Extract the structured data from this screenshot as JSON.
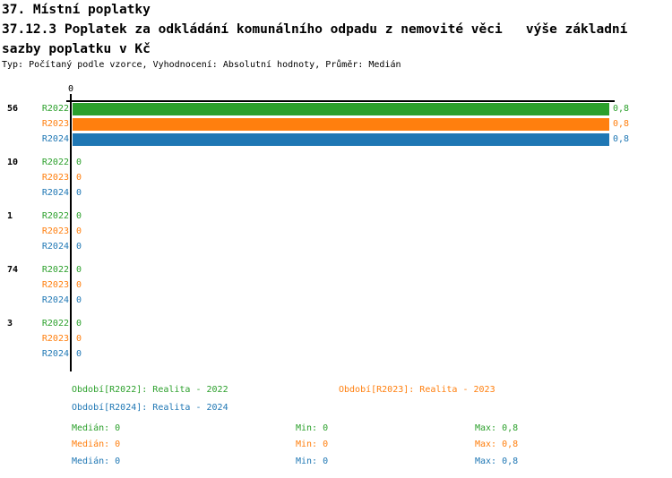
{
  "header": {
    "title": "37. Místní poplatky",
    "subtitle_lines": [
      "37.12.3 Poplatek za odkládání komunálního odpadu z nemovité věci   výše základní",
      "sazby poplatku v Kč"
    ],
    "meta": "Typ: Počítaný podle vzorce, Vyhodnocení: Absolutní hodnoty, Průměr: Medián"
  },
  "colors": {
    "R2022": "#2ca02c",
    "R2023": "#ff7f0e",
    "R2024": "#1f77b4",
    "axis": "#000000"
  },
  "chart_data": {
    "type": "bar",
    "orientation": "horizontal",
    "title": "37.12.3 Poplatek za odkládání komunálního odpadu z nemovité věci - výše základní sazby poplatku v Kč",
    "value_axis": {
      "tick_label": "0",
      "min": 0,
      "max": 0.8,
      "grid": false
    },
    "series_names": [
      "R2022",
      "R2023",
      "R2024"
    ],
    "groups": [
      {
        "label": "56",
        "values": [
          0.8,
          0.8,
          0.8
        ],
        "value_labels": [
          "0,8",
          "0,8",
          "0,8"
        ]
      },
      {
        "label": "10",
        "values": [
          0,
          0,
          0
        ],
        "value_labels": [
          "0",
          "0",
          "0"
        ]
      },
      {
        "label": "1",
        "values": [
          0,
          0,
          0
        ],
        "value_labels": [
          "0",
          "0",
          "0"
        ]
      },
      {
        "label": "74",
        "values": [
          0,
          0,
          0
        ],
        "value_labels": [
          "0",
          "0",
          "0"
        ]
      },
      {
        "label": "3",
        "values": [
          0,
          0,
          0
        ],
        "value_labels": [
          "0",
          "0",
          "0"
        ]
      }
    ],
    "legend_position": "bottom"
  },
  "legend": {
    "periods": [
      {
        "series": "R2022",
        "label": "Období[R2022]: Realita - 2022"
      },
      {
        "series": "R2023",
        "label": "Období[R2023]: Realita - 2023"
      },
      {
        "series": "R2024",
        "label": "Období[R2024]: Realita - 2024"
      }
    ],
    "stats": [
      {
        "series": "R2022",
        "median": "Medián: 0",
        "min": "Min: 0",
        "max": "Max: 0,8"
      },
      {
        "series": "R2023",
        "median": "Medián: 0",
        "min": "Min: 0",
        "max": "Max: 0,8"
      },
      {
        "series": "R2024",
        "median": "Medián: 0",
        "min": "Min: 0",
        "max": "Max: 0,8"
      }
    ]
  }
}
